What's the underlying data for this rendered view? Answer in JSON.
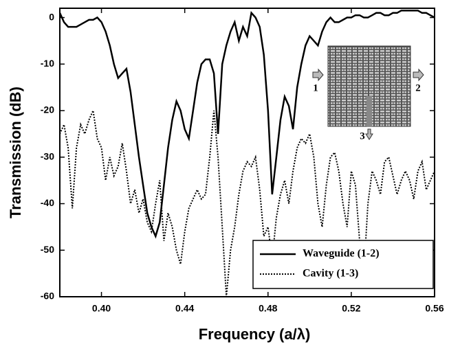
{
  "chart_data": {
    "type": "line",
    "xlabel": "Frequency (a/λ)",
    "ylabel": "Transmission (dB)",
    "x": [
      0.38,
      0.382,
      0.384,
      0.386,
      0.388,
      0.39,
      0.392,
      0.394,
      0.396,
      0.398,
      0.4,
      0.402,
      0.404,
      0.406,
      0.408,
      0.41,
      0.412,
      0.414,
      0.416,
      0.418,
      0.42,
      0.422,
      0.424,
      0.426,
      0.428,
      0.43,
      0.432,
      0.434,
      0.436,
      0.438,
      0.44,
      0.442,
      0.444,
      0.446,
      0.448,
      0.45,
      0.452,
      0.454,
      0.456,
      0.458,
      0.46,
      0.462,
      0.464,
      0.466,
      0.468,
      0.47,
      0.472,
      0.474,
      0.476,
      0.478,
      0.48,
      0.482,
      0.484,
      0.486,
      0.488,
      0.49,
      0.492,
      0.494,
      0.496,
      0.498,
      0.5,
      0.502,
      0.504,
      0.506,
      0.508,
      0.51,
      0.512,
      0.514,
      0.516,
      0.518,
      0.52,
      0.522,
      0.524,
      0.526,
      0.528,
      0.53,
      0.532,
      0.534,
      0.536,
      0.538,
      0.54,
      0.542,
      0.544,
      0.546,
      0.548,
      0.55,
      0.552,
      0.554,
      0.556,
      0.558,
      0.56
    ],
    "series": [
      {
        "name": "Waveguide (1-2)",
        "color": "#000000",
        "dash": "solid",
        "values": [
          1,
          -1,
          -2,
          -2,
          -2,
          -1.5,
          -1,
          -0.5,
          -0.5,
          0,
          -1,
          -3,
          -6,
          -10,
          -13,
          -12,
          -11,
          -16,
          -23,
          -30,
          -36,
          -42,
          -45,
          -47,
          -44,
          -36,
          -28,
          -22,
          -18,
          -20,
          -24,
          -26,
          -20,
          -14,
          -10,
          -9,
          -9,
          -12,
          -25,
          -10,
          -6,
          -3,
          -1,
          -5,
          -2,
          -4,
          1,
          0,
          -2,
          -8,
          -20,
          -38,
          -30,
          -22,
          -17,
          -19,
          -24,
          -15,
          -10,
          -6,
          -4,
          -5,
          -6,
          -3,
          -1,
          0,
          -1,
          -1,
          -0.5,
          0,
          0,
          0.5,
          0.5,
          0,
          0,
          0.5,
          1,
          1,
          0.5,
          0.5,
          1,
          1,
          1.5,
          1.5,
          1.5,
          1.5,
          1.5,
          1,
          1,
          0.5,
          0
        ]
      },
      {
        "name": "Cavity (1-3)",
        "color": "#000000",
        "dash": "dotted",
        "values": [
          -25,
          -23,
          -28,
          -41,
          -28,
          -23,
          -25,
          -22,
          -20,
          -26,
          -28,
          -35,
          -30,
          -34,
          -32,
          -27,
          -33,
          -40,
          -37,
          -42,
          -39,
          -44,
          -46,
          -40,
          -35,
          -48,
          -42,
          -45,
          -50,
          -53,
          -46,
          -41,
          -39,
          -37,
          -39,
          -38,
          -30,
          -20,
          -30,
          -45,
          -60,
          -50,
          -45,
          -38,
          -33,
          -31,
          -32,
          -30,
          -37,
          -47,
          -45,
          -52,
          -43,
          -38,
          -35,
          -40,
          -33,
          -28,
          -26,
          -27,
          -25,
          -30,
          -40,
          -45,
          -36,
          -30,
          -29,
          -33,
          -40,
          -45,
          -33,
          -36,
          -48,
          -55,
          -40,
          -33,
          -35,
          -38,
          -31,
          -30,
          -34,
          -38,
          -35,
          -33,
          -35,
          -39,
          -33,
          -31,
          -37,
          -35,
          -33
        ]
      }
    ],
    "xlim": [
      0.38,
      0.56
    ],
    "xticks": [
      {
        "value": 0.4,
        "label": "0.40"
      },
      0.44,
      0.48,
      0.52,
      0.56
    ],
    "ylim": [
      -60,
      2
    ],
    "yticks": [
      0,
      -10,
      -20,
      -30,
      -40,
      -50,
      -60
    ],
    "legend": "lower-right",
    "annotations": [
      "1",
      "2",
      "3"
    ]
  }
}
